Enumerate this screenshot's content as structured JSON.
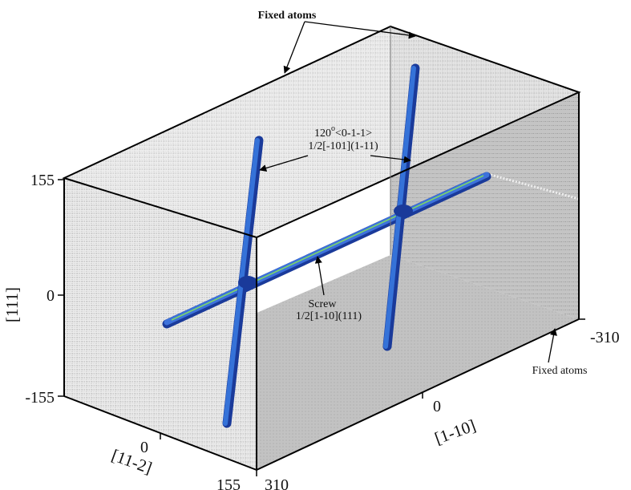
{
  "annotations": {
    "fixed_atoms_top": "Fixed atoms",
    "fixed_atoms_right": "Fixed atoms",
    "dislocation_angle": "120",
    "dislocation_angle_sup": "o",
    "dislocation_direction": "<0-1-1>",
    "dislocation_burgers": "1/2[-101](1-11)",
    "screw_label": "Screw",
    "screw_burgers": "1/2[1-10](111)"
  },
  "axes": {
    "vertical": {
      "label": "[111]",
      "ticks": [
        "155",
        "0",
        "-155"
      ]
    },
    "depth": {
      "label": "[11-2]",
      "ticks": [
        "0",
        "155"
      ]
    },
    "horizontal": {
      "label": "[1-10]",
      "ticks": [
        "-310",
        "0",
        "310"
      ]
    }
  },
  "colors": {
    "frame": "#000000",
    "atom_rows": "#8c8c8c",
    "back_wall": "#c9c9c9",
    "floor": "#bfbfbf",
    "dislocation": "#2f5fc8",
    "dislocation_dark": "#1a3a9a",
    "screw_core": "#7cd66a"
  }
}
